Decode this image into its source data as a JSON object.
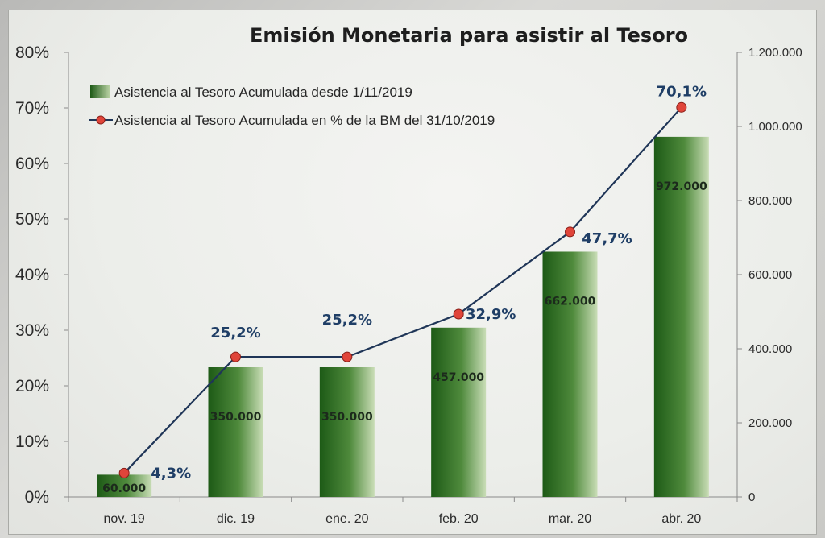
{
  "chart_data": {
    "type": "bar+line",
    "title": "Emisión Monetaria para asistir al Tesoro",
    "categories": [
      "nov. 19",
      "dic. 19",
      "ene. 20",
      "feb. 20",
      "mar. 20",
      "abr. 20"
    ],
    "series": [
      {
        "name": "Asistencia al Tesoro Acumulada desde 1/11/2019",
        "type": "bar",
        "axis": "right",
        "values": [
          60000,
          350000,
          350000,
          457000,
          662000,
          972000
        ],
        "labels": [
          "60.000",
          "350.000",
          "350.000",
          "457.000",
          "662.000",
          "972.000"
        ],
        "color": "#2f6d22"
      },
      {
        "name": "Asistencia al Tesoro Acumulada en % de la BM del 31/10/2019",
        "type": "line",
        "axis": "left",
        "values": [
          4.3,
          25.2,
          25.2,
          32.9,
          47.7,
          70.1
        ],
        "labels": [
          "4,3%",
          "25,2%",
          "25,2%",
          "32,9%",
          "47,7%",
          "70,1%"
        ],
        "color": "#1f3557",
        "marker_color": "#e0453a"
      }
    ],
    "y_left": {
      "ylim": [
        0,
        80
      ],
      "ticks": [
        0,
        10,
        20,
        30,
        40,
        50,
        60,
        70,
        80
      ],
      "tick_labels": [
        "0%",
        "10%",
        "20%",
        "30%",
        "40%",
        "50%",
        "60%",
        "70%",
        "80%"
      ]
    },
    "y_right": {
      "ylim": [
        0,
        1200000
      ],
      "ticks": [
        0,
        200000,
        400000,
        600000,
        800000,
        1000000,
        1200000
      ],
      "tick_labels": [
        "0",
        "200.000",
        "400.000",
        "600.000",
        "800.000",
        "1.000.000",
        "1.200.000"
      ]
    },
    "legend_position": "top-left",
    "grid": false
  }
}
